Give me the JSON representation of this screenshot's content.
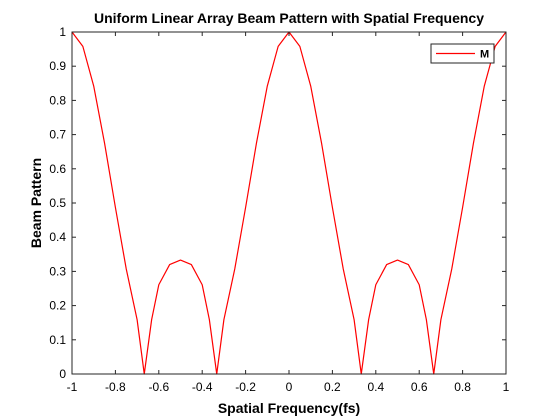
{
  "chart_data": {
    "type": "line",
    "title": "Uniform Linear Array Beam Pattern with Spatial Frequency",
    "xlabel": "Spatial Frequency(fs)",
    "ylabel": "Beam Pattern",
    "xlim": [
      -1,
      1
    ],
    "ylim": [
      0,
      1
    ],
    "xticks": [
      -1,
      -0.8,
      -0.6,
      -0.4,
      -0.2,
      0,
      0.2,
      0.4,
      0.6,
      0.8,
      1
    ],
    "xtick_labels": [
      "-1",
      "-0.8",
      "-0.6",
      "-0.4",
      "-0.2",
      "0",
      "0.2",
      "0.4",
      "0.6",
      "0.8",
      "1"
    ],
    "yticks": [
      0,
      0.1,
      0.2,
      0.3,
      0.4,
      0.5,
      0.6,
      0.7,
      0.8,
      0.9,
      1
    ],
    "ytick_labels": [
      "0",
      "0.1",
      "0.2",
      "0.3",
      "0.4",
      "0.5",
      "0.6",
      "0.7",
      "0.8",
      "0.9",
      "1"
    ],
    "grid": false,
    "legend_position": "top-right",
    "series": [
      {
        "name": "M",
        "color": "#ff0000",
        "x": [
          -1,
          -0.95,
          -0.9,
          -0.85,
          -0.8,
          -0.75,
          -0.7,
          -0.667,
          -0.633,
          -0.6,
          -0.55,
          -0.5,
          -0.45,
          -0.4,
          -0.367,
          -0.333,
          -0.3,
          -0.25,
          -0.2,
          -0.15,
          -0.1,
          -0.05,
          0,
          0.05,
          0.1,
          0.15,
          0.2,
          0.25,
          0.3,
          0.333,
          0.367,
          0.4,
          0.45,
          0.5,
          0.55,
          0.6,
          0.633,
          0.667,
          0.7,
          0.75,
          0.8,
          0.85,
          0.9,
          0.95,
          1
        ],
        "y": [
          1,
          0.958,
          0.842,
          0.675,
          0.487,
          0.307,
          0.159,
          0,
          0.159,
          0.261,
          0.32,
          0.333,
          0.32,
          0.261,
          0.159,
          0,
          0.159,
          0.307,
          0.487,
          0.675,
          0.842,
          0.958,
          1,
          0.958,
          0.842,
          0.675,
          0.487,
          0.307,
          0.159,
          0,
          0.159,
          0.261,
          0.32,
          0.333,
          0.32,
          0.261,
          0.159,
          0,
          0.159,
          0.307,
          0.487,
          0.675,
          0.842,
          0.958,
          1
        ]
      }
    ]
  }
}
